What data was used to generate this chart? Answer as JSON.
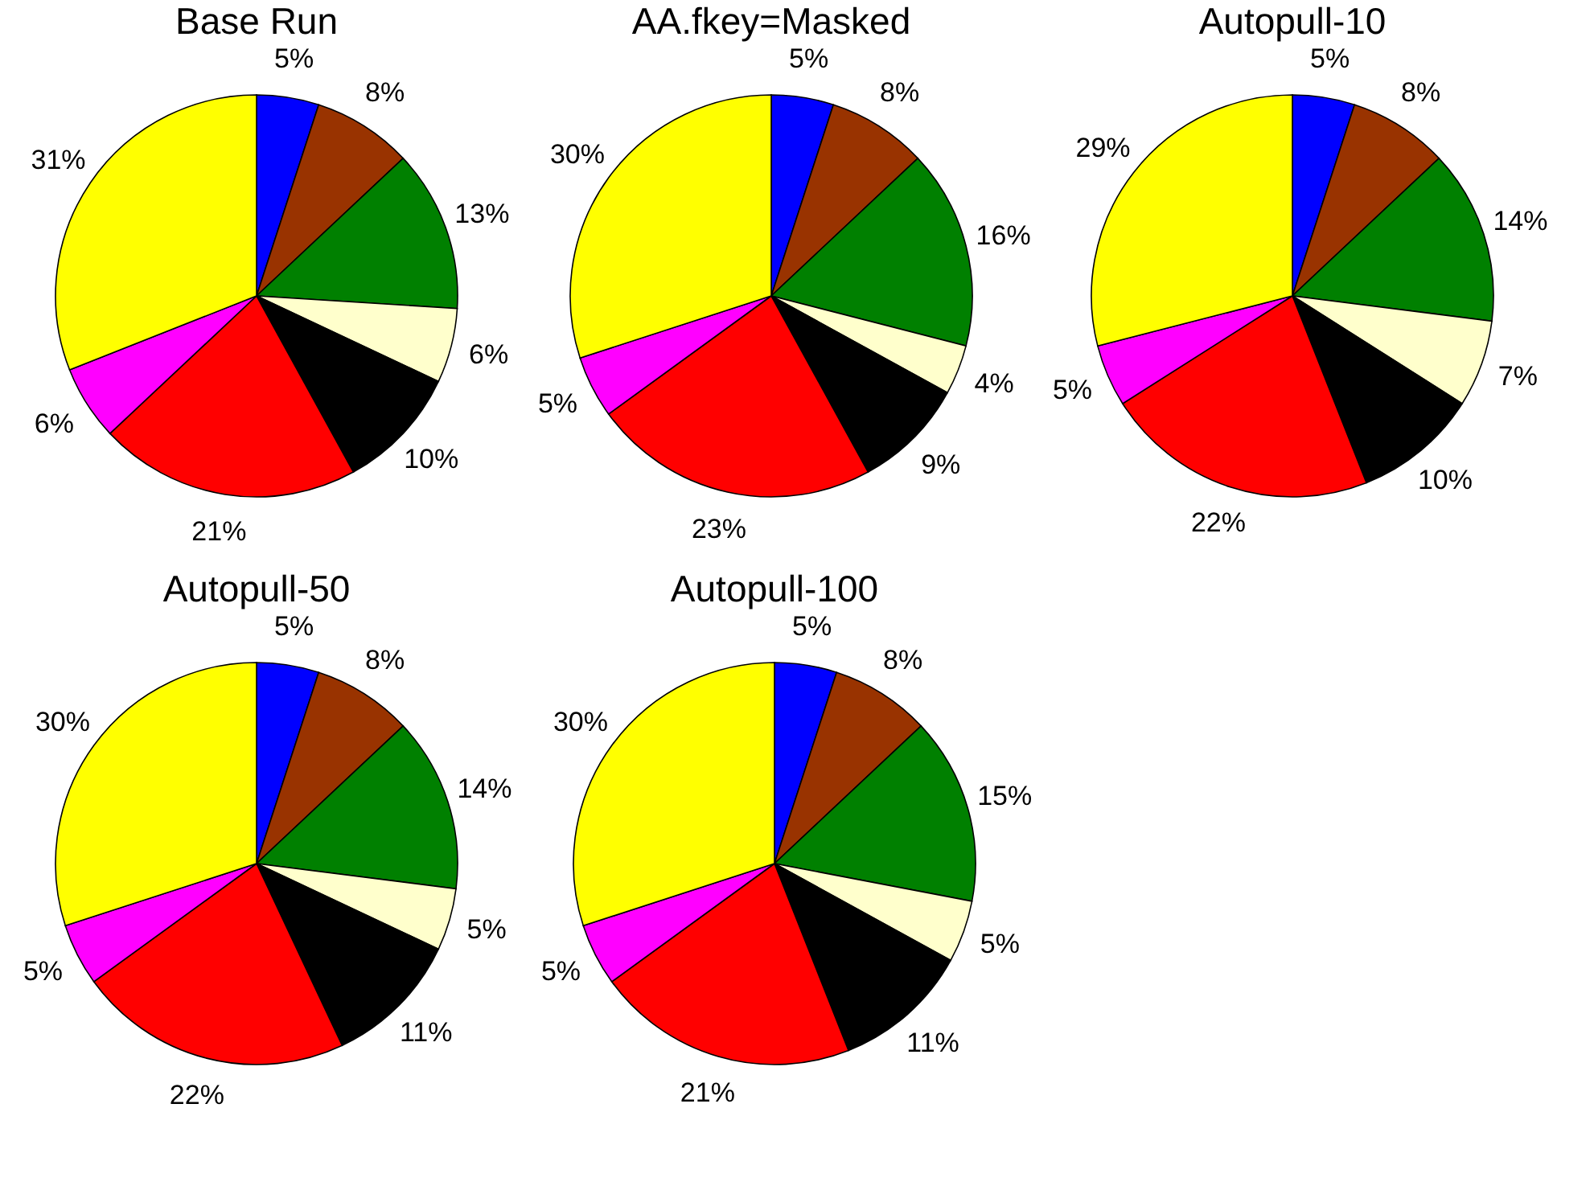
{
  "chart_data": [
    {
      "type": "pie",
      "title": "Base Run",
      "categories": [
        null,
        null,
        null,
        null,
        null,
        null,
        null,
        null
      ],
      "values": [
        5,
        8,
        13,
        6,
        10,
        21,
        6,
        31
      ],
      "value_labels": [
        "5%",
        "8%",
        "13%",
        "6%",
        "10%",
        "21%",
        "6%",
        "31%"
      ],
      "colors": [
        "#0000ff",
        "#993300",
        "#008000",
        "#ffffcc",
        "#000000",
        "#ff0000",
        "#ff00ff",
        "#ffff00"
      ],
      "legend": false
    },
    {
      "type": "pie",
      "title": "AA.fkey=Masked",
      "categories": [
        null,
        null,
        null,
        null,
        null,
        null,
        null,
        null
      ],
      "values": [
        5,
        8,
        16,
        4,
        9,
        23,
        5,
        30
      ],
      "value_labels": [
        "5%",
        "8%",
        "16%",
        "4%",
        "9%",
        "23%",
        "5%",
        "30%"
      ],
      "colors": [
        "#0000ff",
        "#993300",
        "#008000",
        "#ffffcc",
        "#000000",
        "#ff0000",
        "#ff00ff",
        "#ffff00"
      ],
      "legend": false
    },
    {
      "type": "pie",
      "title": "Autopull-10",
      "categories": [
        null,
        null,
        null,
        null,
        null,
        null,
        null,
        null
      ],
      "values": [
        5,
        8,
        14,
        7,
        10,
        22,
        5,
        29
      ],
      "value_labels": [
        "5%",
        "8%",
        "14%",
        "7%",
        "10%",
        "22%",
        "5%",
        "29%"
      ],
      "colors": [
        "#0000ff",
        "#993300",
        "#008000",
        "#ffffcc",
        "#000000",
        "#ff0000",
        "#ff00ff",
        "#ffff00"
      ],
      "legend": false
    },
    {
      "type": "pie",
      "title": "Autopull-50",
      "categories": [
        null,
        null,
        null,
        null,
        null,
        null,
        null,
        null
      ],
      "values": [
        5,
        8,
        14,
        5,
        11,
        22,
        5,
        30
      ],
      "value_labels": [
        "5%",
        "8%",
        "14%",
        "5%",
        "11%",
        "22%",
        "5%",
        "30%"
      ],
      "colors": [
        "#0000ff",
        "#993300",
        "#008000",
        "#ffffcc",
        "#000000",
        "#ff0000",
        "#ff00ff",
        "#ffff00"
      ],
      "legend": false
    },
    {
      "type": "pie",
      "title": "Autopull-100",
      "categories": [
        null,
        null,
        null,
        null,
        null,
        null,
        null,
        null
      ],
      "values": [
        5,
        8,
        15,
        5,
        11,
        21,
        5,
        30
      ],
      "value_labels": [
        "5%",
        "8%",
        "15%",
        "5%",
        "11%",
        "21%",
        "5%",
        "30%"
      ],
      "colors": [
        "#0000ff",
        "#993300",
        "#008000",
        "#ffffcc",
        "#000000",
        "#ff0000",
        "#ff00ff",
        "#ffff00"
      ],
      "legend": false
    }
  ]
}
